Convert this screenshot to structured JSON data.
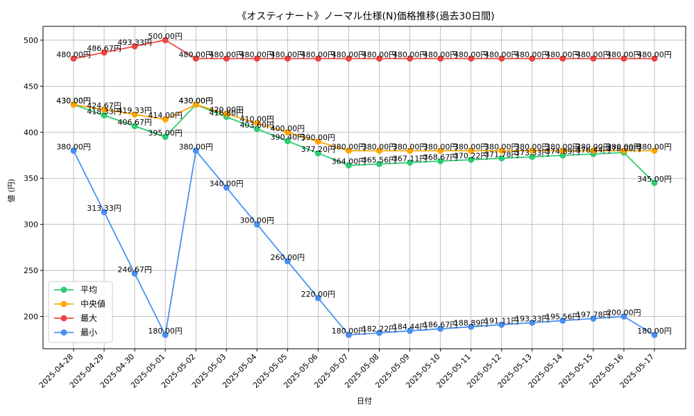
{
  "chart_data": {
    "type": "line",
    "title": "《オスティナート》ノーマル仕様(N)価格推移(過去30日間)",
    "xlabel": "日付",
    "ylabel": "値 (円)",
    "ylim": [
      165,
      515
    ],
    "yticks": [
      200,
      250,
      300,
      350,
      400,
      450,
      500
    ],
    "grid": true,
    "legend_position": "lower-left",
    "value_suffix": "円",
    "categories": [
      "2025-04-28",
      "2025-04-29",
      "2025-04-30",
      "2025-05-01",
      "2025-05-02",
      "2025-05-03",
      "2025-05-04",
      "2025-05-05",
      "2025-05-06",
      "2025-05-07",
      "2025-05-08",
      "2025-05-09",
      "2025-05-10",
      "2025-05-11",
      "2025-05-12",
      "2025-05-13",
      "2025-05-14",
      "2025-05-15",
      "2025-05-16",
      "2025-05-17"
    ],
    "series": [
      {
        "name": "平均",
        "color": "#2ecc71",
        "values": [
          430.0,
          418.33,
          406.67,
          395.0,
          430.0,
          416.8,
          403.6,
          390.4,
          377.2,
          364.0,
          365.56,
          367.11,
          368.67,
          370.22,
          371.78,
          373.33,
          374.89,
          376.44,
          378.0,
          345.0
        ]
      },
      {
        "name": "中央値",
        "color": "#ffa500",
        "values": [
          430.0,
          424.67,
          419.33,
          414.0,
          430.0,
          420.0,
          410.0,
          400.0,
          390.0,
          380.0,
          380.0,
          380.0,
          380.0,
          380.0,
          380.0,
          380.0,
          380.0,
          380.0,
          380.0,
          380.0
        ]
      },
      {
        "name": "最大",
        "color": "#ef4444",
        "values": [
          480.0,
          486.67,
          493.33,
          500.0,
          480.0,
          480.0,
          480.0,
          480.0,
          480.0,
          480.0,
          480.0,
          480.0,
          480.0,
          480.0,
          480.0,
          480.0,
          480.0,
          480.0,
          480.0,
          480.0
        ]
      },
      {
        "name": "最小",
        "color": "#4a90f0",
        "values": [
          380.0,
          313.33,
          246.67,
          180.0,
          380.0,
          340.0,
          300.0,
          260.0,
          220.0,
          180.0,
          182.22,
          184.44,
          186.67,
          188.89,
          191.11,
          193.33,
          195.56,
          197.78,
          200.0,
          180.0
        ]
      }
    ]
  }
}
